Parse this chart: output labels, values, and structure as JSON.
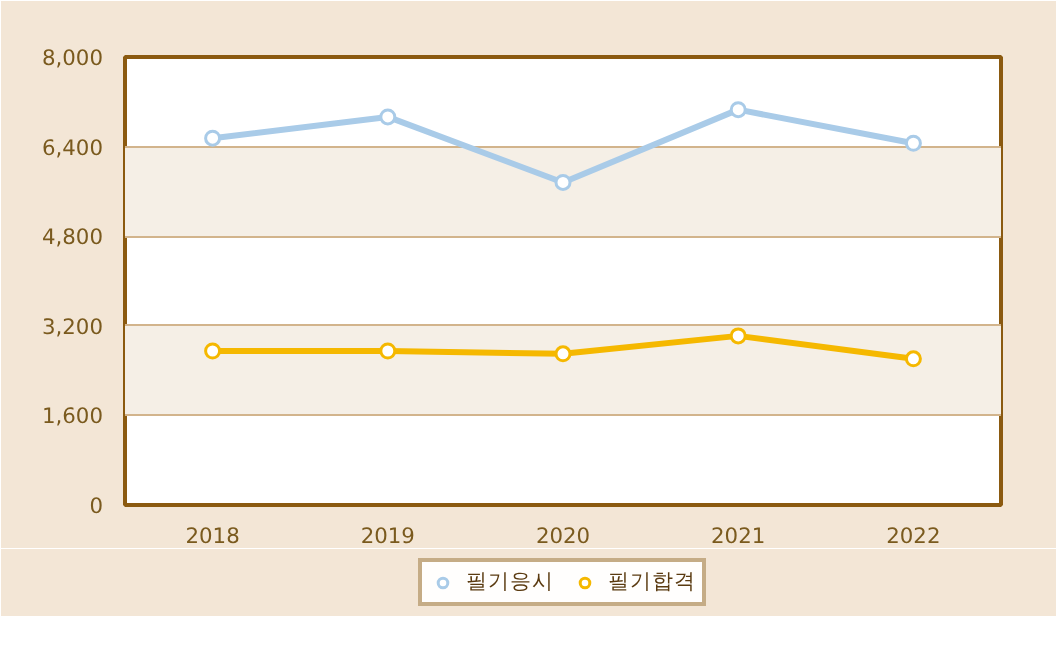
{
  "chart_data": {
    "type": "line",
    "categories": [
      "2018",
      "2019",
      "2020",
      "2021",
      "2022"
    ],
    "series": [
      {
        "name": "필기응시",
        "color": "#a9cbe8",
        "values": [
          6550,
          6930,
          5760,
          7060,
          6460
        ]
      },
      {
        "name": "필기합격",
        "color": "#f5b800",
        "values": [
          2750,
          2750,
          2700,
          3020,
          2610
        ]
      }
    ],
    "ylim": [
      0,
      8000
    ],
    "yticks": [
      0,
      {
        "value": 1600,
        "label": "1,600"
      },
      {
        "value": 3200,
        "label": "3,200"
      },
      {
        "value": 4800,
        "label": "4,800"
      },
      {
        "value": 6400,
        "label": "6,400"
      },
      {
        "value": 8000,
        "label": "8,000"
      }
    ],
    "grid": "y",
    "legend": "bottom",
    "marker": "circle",
    "line_style": "solid"
  }
}
